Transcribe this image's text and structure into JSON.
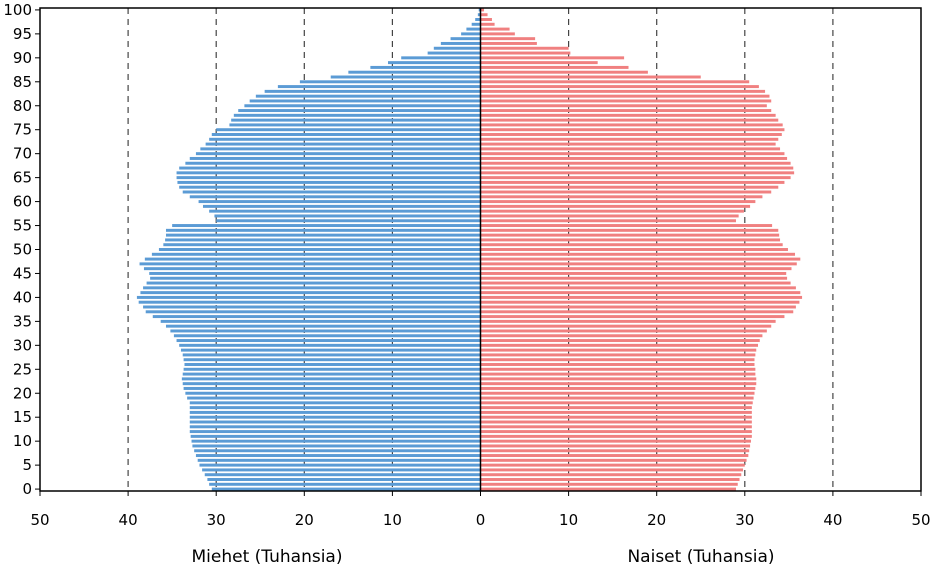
{
  "chart_data": {
    "type": "bar",
    "orientation": "horizontal",
    "title": "",
    "xlabel_left": "Miehet (Tuhansia)",
    "xlabel_right": "Naiset (Tuhansia)",
    "ylabel": "",
    "x_ticks": [
      "50",
      "40",
      "30",
      "20",
      "10",
      "0",
      "10",
      "20",
      "30",
      "40",
      "50"
    ],
    "y_ticks": [
      "0",
      "5",
      "10",
      "15",
      "20",
      "25",
      "30",
      "35",
      "40",
      "45",
      "50",
      "55",
      "60",
      "65",
      "70",
      "75",
      "80",
      "85",
      "90",
      "95",
      "100"
    ],
    "xlim": [
      -50,
      50
    ],
    "ylim": [
      0,
      100
    ],
    "grid": "vertical dashed",
    "colors": {
      "males": "#5b9bd5",
      "females": "#f08080"
    },
    "categories": [
      0,
      1,
      2,
      3,
      4,
      5,
      6,
      7,
      8,
      9,
      10,
      11,
      12,
      13,
      14,
      15,
      16,
      17,
      18,
      19,
      20,
      21,
      22,
      23,
      24,
      25,
      26,
      27,
      28,
      29,
      30,
      31,
      32,
      33,
      34,
      35,
      36,
      37,
      38,
      39,
      40,
      41,
      42,
      43,
      44,
      45,
      46,
      47,
      48,
      49,
      50,
      51,
      52,
      53,
      54,
      55,
      56,
      57,
      58,
      59,
      60,
      61,
      62,
      63,
      64,
      65,
      66,
      67,
      68,
      69,
      70,
      71,
      72,
      73,
      74,
      75,
      76,
      77,
      78,
      79,
      80,
      81,
      82,
      83,
      84,
      85,
      86,
      87,
      88,
      89,
      90,
      91,
      92,
      93,
      94,
      95,
      96,
      97,
      98,
      99,
      100
    ],
    "series": [
      {
        "name": "Miehet",
        "values": [
          30.5,
          30.8,
          31.0,
          31.3,
          31.6,
          31.9,
          32.1,
          32.3,
          32.5,
          32.7,
          32.8,
          32.9,
          33.0,
          33.0,
          33.0,
          33.0,
          33.0,
          33.0,
          33.0,
          33.3,
          33.5,
          33.7,
          33.8,
          33.9,
          33.8,
          33.7,
          33.6,
          33.7,
          33.8,
          34.0,
          34.2,
          34.5,
          34.8,
          35.2,
          35.7,
          36.3,
          37.2,
          38.0,
          38.3,
          38.8,
          39.0,
          38.6,
          38.3,
          37.9,
          37.5,
          37.6,
          38.2,
          38.7,
          38.1,
          37.3,
          36.5,
          36.0,
          35.8,
          35.7,
          35.7,
          35.0,
          30.0,
          30.2,
          30.8,
          31.5,
          32.0,
          33.0,
          33.8,
          34.2,
          34.4,
          34.5,
          34.5,
          34.2,
          33.5,
          33.0,
          32.3,
          31.8,
          31.2,
          30.8,
          30.5,
          30.0,
          28.5,
          28.3,
          28.0,
          27.5,
          26.8,
          26.2,
          25.5,
          24.5,
          23.0,
          20.5,
          17.0,
          15.0,
          12.5,
          10.5,
          9.0,
          6.0,
          5.3,
          4.5,
          3.4,
          2.2,
          1.6,
          1.0,
          0.6,
          0.3,
          0.2
        ]
      },
      {
        "name": "Naiset",
        "values": [
          29.0,
          29.2,
          29.4,
          29.6,
          29.8,
          30.0,
          30.2,
          30.4,
          30.5,
          30.6,
          30.7,
          30.8,
          30.8,
          30.8,
          30.8,
          30.8,
          30.8,
          30.8,
          30.9,
          31.0,
          31.1,
          31.2,
          31.3,
          31.3,
          31.2,
          31.2,
          31.1,
          31.1,
          31.2,
          31.3,
          31.5,
          31.7,
          32.0,
          32.5,
          33.0,
          33.5,
          34.5,
          35.5,
          35.8,
          36.2,
          36.5,
          36.3,
          35.8,
          35.2,
          34.8,
          34.7,
          35.3,
          35.9,
          36.3,
          35.7,
          34.9,
          34.3,
          34.0,
          33.9,
          33.8,
          33.1,
          29.0,
          29.3,
          29.9,
          30.6,
          31.2,
          32.0,
          33.0,
          33.8,
          34.5,
          35.2,
          35.6,
          35.5,
          35.2,
          34.8,
          34.5,
          34.0,
          33.5,
          33.8,
          34.2,
          34.5,
          34.3,
          33.8,
          33.5,
          33.0,
          32.5,
          33.0,
          32.8,
          32.3,
          31.6,
          30.5,
          25.0,
          19.0,
          16.8,
          13.3,
          16.3,
          10.2,
          10.0,
          6.4,
          6.2,
          3.9,
          3.3,
          1.6,
          1.3,
          0.8,
          0.4
        ]
      }
    ]
  }
}
